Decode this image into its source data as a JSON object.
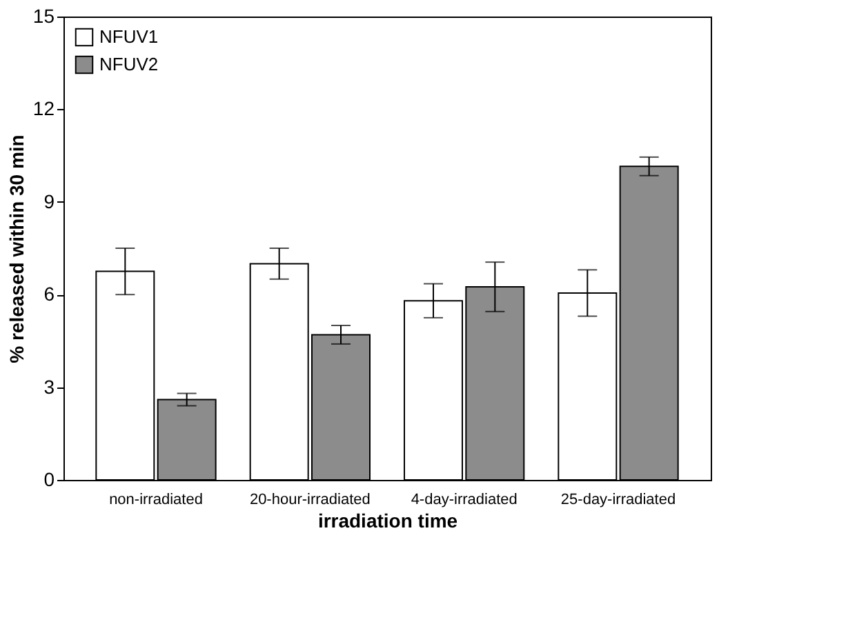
{
  "chart_data": {
    "type": "bar",
    "xlabel": "irradiation time",
    "ylabel": "% released within 30 min",
    "categories": [
      "non-irradiated",
      "20-hour-irradiated",
      "4-day-irradiated",
      "25-day-irradiated"
    ],
    "series": [
      {
        "name": "NFUV1",
        "color": "#ffffff",
        "values": [
          6.75,
          7.0,
          5.8,
          6.05
        ],
        "errors": [
          0.75,
          0.5,
          0.55,
          0.75
        ]
      },
      {
        "name": "NFUV2",
        "color": "#8c8c8c",
        "values": [
          2.6,
          4.7,
          6.25,
          10.15
        ],
        "errors": [
          0.2,
          0.3,
          0.8,
          0.3
        ]
      }
    ],
    "ylim": [
      0,
      15
    ],
    "yticks": [
      0,
      3,
      6,
      9,
      12,
      15
    ],
    "grid": false,
    "legend": "top left"
  }
}
